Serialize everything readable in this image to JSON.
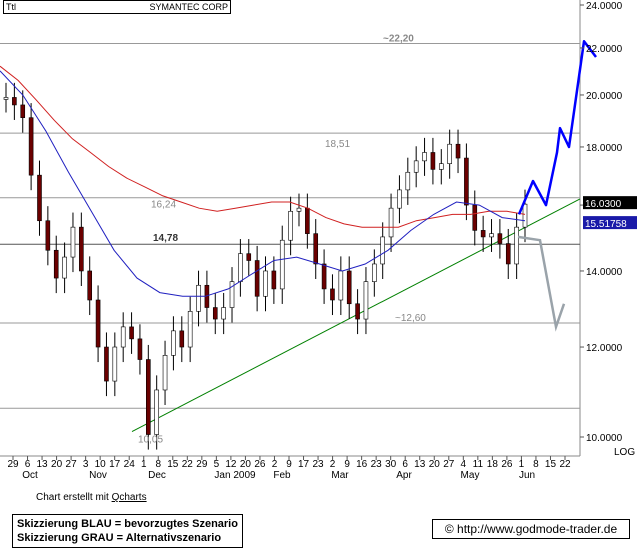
{
  "header": {
    "ticker": "Ttl",
    "company": "SYMANTEC CORP"
  },
  "footer": {
    "credit_prefix": "Chart erstellt mit ",
    "credit_link": "Qcharts",
    "legend_blue": "Skizzierung BLAU = bevorzugtes Szenario",
    "legend_grey": "Skizzierung GRAU = Alternativszenario",
    "copyright": "© http://www.godmode-trader.de"
  },
  "chart_data": {
    "type": "candlestick",
    "scale": "log",
    "ylabel": "LOG",
    "ylim": [
      9.8,
      24.0
    ],
    "y_ticks": [
      "24.0000",
      "22.0000",
      "20.0000",
      "18.0000",
      "16.0000",
      "14.0000",
      "12.0000",
      "10.0000"
    ],
    "x_day_ticks": [
      "29",
      "6",
      "13",
      "20",
      "27",
      "3",
      "10",
      "17",
      "24",
      "1",
      "8",
      "15",
      "22",
      "29",
      "5",
      "12",
      "20",
      "26",
      "2",
      "9",
      "17",
      "23",
      "2",
      "9",
      "16",
      "23",
      "30",
      "6",
      "13",
      "20",
      "27",
      "4",
      "11",
      "18",
      "26",
      "1",
      "8",
      "15",
      "22"
    ],
    "x_month_labels": [
      "Oct",
      "Nov",
      "Dec",
      "Jan 2009",
      "Feb",
      "Mar",
      "Apr",
      "May",
      "Jun"
    ],
    "last_price": "16.0300",
    "ma_value": "15.51758",
    "levels": [
      {
        "label": "~22,20",
        "value": 22.2
      },
      {
        "label": "18,51",
        "value": 18.51
      },
      {
        "label": "16,24",
        "value": 16.24
      },
      {
        "label": "14,78",
        "value": 14.78
      },
      {
        "label": "~12,60",
        "value": 12.6
      },
      {
        "label": "10,05",
        "value": 10.05
      }
    ],
    "series": [
      {
        "name": "price",
        "style": "candles",
        "values": [
          19.9,
          19.6,
          19.1,
          17.0,
          15.5,
          14.6,
          13.8,
          14.4,
          15.3,
          14.0,
          13.2,
          12.0,
          11.2,
          12.0,
          12.5,
          12.2,
          11.7,
          10.05,
          11.0,
          11.8,
          12.4,
          12.0,
          12.9,
          13.6,
          13.0,
          12.7,
          13.0,
          13.7,
          14.5,
          14.3,
          13.3,
          14.0,
          13.5,
          14.9,
          15.8,
          15.9,
          15.1,
          14.2,
          13.5,
          13.2,
          14.0,
          13.1,
          12.7,
          13.7,
          14.2,
          15.0,
          15.9,
          16.5,
          17.1,
          17.5,
          17.8,
          17.2,
          17.4,
          18.1,
          17.6,
          16.0,
          15.2,
          15.0,
          15.1,
          14.8,
          14.2,
          15.3,
          16.03
        ],
        "color": "#8b0000"
      },
      {
        "name": "ma_long",
        "values": [
          21.2,
          20.6,
          19.8,
          19.0,
          18.3,
          17.8,
          17.3,
          16.9,
          16.6,
          16.3,
          16.1,
          15.9,
          15.8,
          15.9,
          16.0,
          16.1,
          16.1,
          15.9,
          15.6,
          15.4,
          15.3,
          15.3,
          15.3,
          15.5,
          15.6,
          15.7,
          15.7,
          15.8,
          15.8,
          15.7
        ],
        "color": "#d02020"
      },
      {
        "name": "ma_short",
        "values": [
          21.0,
          20.0,
          18.6,
          17.1,
          15.8,
          14.6,
          13.8,
          13.4,
          13.3,
          13.3,
          13.5,
          13.9,
          14.3,
          14.4,
          14.2,
          14.0,
          14.2,
          14.6,
          15.2,
          15.7,
          16.1,
          16.0,
          15.6,
          15.5
        ],
        "color": "#2020c0"
      }
    ],
    "trendline": {
      "from_value": 10.05,
      "to_value": 16.2,
      "color": "#008000"
    },
    "scenario_blue": {
      "values": [
        15.7,
        16.8,
        16.0,
        17.8,
        18.7,
        18.0,
        22.3,
        21.6
      ],
      "color": "#0000ff"
    },
    "scenario_grey": {
      "values": [
        15.0,
        14.9,
        12.5,
        13.1
      ],
      "color": "#9aa3aa"
    },
    "grid": true
  }
}
